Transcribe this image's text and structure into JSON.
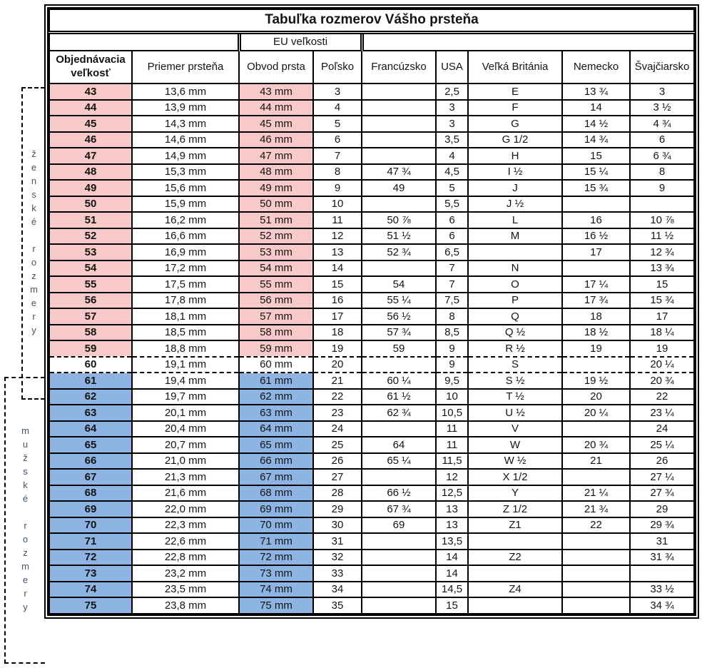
{
  "header": {
    "title": "Tabuľka rozmerov Vášho prsteňa",
    "eu_group_label": "EU veľkosti"
  },
  "columns": [
    "Objednávacia veľkosť",
    "Priemer prsteňa",
    "Obvod prsta",
    "Poľsko",
    "Francúzsko",
    "USA",
    "Veľká Británia",
    "Nemecko",
    "Švajčiarsko"
  ],
  "side_labels": {
    "female": "ženské rozmery",
    "male": "mužské rozmery"
  },
  "colors": {
    "female_row": "#F7C9C9",
    "male_row": "#8DB4E2",
    "side_label_text": "#44546A",
    "grid": "#000000"
  },
  "rows": [
    {
      "group": "f",
      "size": "43",
      "diameter": "13,6 mm",
      "circumference": "43 mm",
      "poland": "3",
      "france": "",
      "usa": "2,5",
      "uk": "E",
      "germany": "13 ¾",
      "switzerland": "3"
    },
    {
      "group": "f",
      "size": "44",
      "diameter": "13,9 mm",
      "circumference": "44 mm",
      "poland": "4",
      "france": "",
      "usa": "3",
      "uk": "F",
      "germany": "14",
      "switzerland": "3 ½"
    },
    {
      "group": "f",
      "size": "45",
      "diameter": "14,3 mm",
      "circumference": "45 mm",
      "poland": "5",
      "france": "",
      "usa": "3",
      "uk": "G",
      "germany": "14 ½",
      "switzerland": "4 ¾"
    },
    {
      "group": "f",
      "size": "46",
      "diameter": "14,6 mm",
      "circumference": "46 mm",
      "poland": "6",
      "france": "",
      "usa": "3,5",
      "uk": "G 1/2",
      "germany": "14 ¾",
      "switzerland": "6"
    },
    {
      "group": "f",
      "size": "47",
      "diameter": "14,9 mm",
      "circumference": "47 mm",
      "poland": "7",
      "france": "",
      "usa": "4",
      "uk": "H",
      "germany": "15",
      "switzerland": "6 ¾"
    },
    {
      "group": "f",
      "size": "48",
      "diameter": "15,3 mm",
      "circumference": "48 mm",
      "poland": "8",
      "france": "47 ¾",
      "usa": "4,5",
      "uk": "I ½",
      "germany": "15 ¼",
      "switzerland": "8"
    },
    {
      "group": "f",
      "size": "49",
      "diameter": "15,6 mm",
      "circumference": "49 mm",
      "poland": "9",
      "france": "49",
      "usa": "5",
      "uk": "J",
      "germany": "15 ¾",
      "switzerland": "9"
    },
    {
      "group": "f",
      "size": "50",
      "diameter": "15,9 mm",
      "circumference": "50 mm",
      "poland": "10",
      "france": "",
      "usa": "5,5",
      "uk": "J ½",
      "germany": "",
      "switzerland": ""
    },
    {
      "group": "f",
      "size": "51",
      "diameter": "16,2 mm",
      "circumference": "51 mm",
      "poland": "11",
      "france": "50 ⅞",
      "usa": "6",
      "uk": "L",
      "germany": "16",
      "switzerland": "10 ⅞"
    },
    {
      "group": "f",
      "size": "52",
      "diameter": "16,6 mm",
      "circumference": "52 mm",
      "poland": "12",
      "france": "51 ½",
      "usa": "6",
      "uk": "M",
      "germany": "16 ½",
      "switzerland": "11 ½"
    },
    {
      "group": "f",
      "size": "53",
      "diameter": "16,9 mm",
      "circumference": "53 mm",
      "poland": "13",
      "france": "52 ¾",
      "usa": "6,5",
      "uk": "",
      "germany": "17",
      "switzerland": "12 ¾"
    },
    {
      "group": "f",
      "size": "54",
      "diameter": "17,2 mm",
      "circumference": "54 mm",
      "poland": "14",
      "france": "",
      "usa": "7",
      "uk": "N",
      "germany": "",
      "switzerland": "13 ¾"
    },
    {
      "group": "f",
      "size": "55",
      "diameter": "17,5 mm",
      "circumference": "55 mm",
      "poland": "15",
      "france": "54",
      "usa": "7",
      "uk": "O",
      "germany": "17 ¼",
      "switzerland": "15"
    },
    {
      "group": "f",
      "size": "56",
      "diameter": "17,8 mm",
      "circumference": "56 mm",
      "poland": "16",
      "france": "55 ¼",
      "usa": "7,5",
      "uk": "P",
      "germany": "17 ¾",
      "switzerland": "15 ¾"
    },
    {
      "group": "f",
      "size": "57",
      "diameter": "18,1 mm",
      "circumference": "57 mm",
      "poland": "17",
      "france": "56 ½",
      "usa": "8",
      "uk": "Q",
      "germany": "18",
      "switzerland": "17"
    },
    {
      "group": "f",
      "size": "58",
      "diameter": "18,5 mm",
      "circumference": "58 mm",
      "poland": "18",
      "france": "57 ¾",
      "usa": "8,5",
      "uk": "Q ½",
      "germany": "18 ½",
      "switzerland": "18 ¼"
    },
    {
      "group": "f",
      "size": "59",
      "diameter": "18,8 mm",
      "circumference": "59 mm",
      "poland": "19",
      "france": "59",
      "usa": "9",
      "uk": "R ½",
      "germany": "19",
      "switzerland": "19"
    },
    {
      "group": "n",
      "size": "60",
      "diameter": "19,1 mm",
      "circumference": "60 mm",
      "poland": "20",
      "france": "",
      "usa": "9",
      "uk": "S",
      "germany": "",
      "switzerland": "20 ¼"
    },
    {
      "group": "m",
      "size": "61",
      "diameter": "19,4 mm",
      "circumference": "61 mm",
      "poland": "21",
      "france": "60 ¼",
      "usa": "9,5",
      "uk": "S ½",
      "germany": "19 ½",
      "switzerland": "20 ¾"
    },
    {
      "group": "m",
      "size": "62",
      "diameter": "19,7 mm",
      "circumference": "62 mm",
      "poland": "22",
      "france": "61 ½",
      "usa": "10",
      "uk": "T ½",
      "germany": "20",
      "switzerland": "22"
    },
    {
      "group": "m",
      "size": "63",
      "diameter": "20,1 mm",
      "circumference": "63 mm",
      "poland": "23",
      "france": "62 ¾",
      "usa": "10,5",
      "uk": "U ½",
      "germany": "20 ¼",
      "switzerland": "23 ¼"
    },
    {
      "group": "m",
      "size": "64",
      "diameter": "20,4 mm",
      "circumference": "64 mm",
      "poland": "24",
      "france": "",
      "usa": "11",
      "uk": "V",
      "germany": "",
      "switzerland": "24"
    },
    {
      "group": "m",
      "size": "65",
      "diameter": "20,7 mm",
      "circumference": "65 mm",
      "poland": "25",
      "france": "64",
      "usa": "11",
      "uk": "W",
      "germany": "20 ¾",
      "switzerland": "25 ¼"
    },
    {
      "group": "m",
      "size": "66",
      "diameter": "21,0 mm",
      "circumference": "66 mm",
      "poland": "26",
      "france": "65 ¼",
      "usa": "11,5",
      "uk": "W ½",
      "germany": "21",
      "switzerland": "26"
    },
    {
      "group": "m",
      "size": "67",
      "diameter": "21,3 mm",
      "circumference": "67 mm",
      "poland": "27",
      "france": "",
      "usa": "12",
      "uk": "X 1/2",
      "germany": "",
      "switzerland": "27 ¼"
    },
    {
      "group": "m",
      "size": "68",
      "diameter": "21,6 mm",
      "circumference": "68 mm",
      "poland": "28",
      "france": "66 ½",
      "usa": "12,5",
      "uk": "Y",
      "germany": "21 ¼",
      "switzerland": "27 ¾"
    },
    {
      "group": "m",
      "size": "69",
      "diameter": "22,0 mm",
      "circumference": "69 mm",
      "poland": "29",
      "france": "67 ¾",
      "usa": "13",
      "uk": "Z 1/2",
      "germany": "21 ¾",
      "switzerland": "29"
    },
    {
      "group": "m",
      "size": "70",
      "diameter": "22,3 mm",
      "circumference": "70 mm",
      "poland": "30",
      "france": "69",
      "usa": "13",
      "uk": "Z1",
      "germany": "22",
      "switzerland": "29 ¾"
    },
    {
      "group": "m",
      "size": "71",
      "diameter": "22,6 mm",
      "circumference": "71 mm",
      "poland": "31",
      "france": "",
      "usa": "13,5",
      "uk": "",
      "germany": "",
      "switzerland": "31"
    },
    {
      "group": "m",
      "size": "72",
      "diameter": "22,8 mm",
      "circumference": "72 mm",
      "poland": "32",
      "france": "",
      "usa": "14",
      "uk": "Z2",
      "germany": "",
      "switzerland": "31 ¾"
    },
    {
      "group": "m",
      "size": "73",
      "diameter": "23,2 mm",
      "circumference": "73 mm",
      "poland": "33",
      "france": "",
      "usa": "14",
      "uk": "",
      "germany": "",
      "switzerland": ""
    },
    {
      "group": "m",
      "size": "74",
      "diameter": "23,5 mm",
      "circumference": "74 mm",
      "poland": "34",
      "france": "",
      "usa": "14,5",
      "uk": "Z4",
      "germany": "",
      "switzerland": "33 ½"
    },
    {
      "group": "m",
      "size": "75",
      "diameter": "23,8 mm",
      "circumference": "75 mm",
      "poland": "35",
      "france": "",
      "usa": "15",
      "uk": "",
      "germany": "",
      "switzerland": "34 ¾"
    }
  ]
}
